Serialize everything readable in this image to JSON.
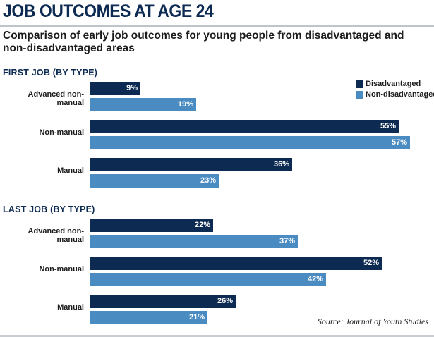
{
  "chart_data": {
    "type": "bar",
    "orientation": "horizontal",
    "title": "JOB OUTCOMES AT AGE 24",
    "subtitle": "Comparison of early job outcomes for young people from disadvantaged and non-disadvantaged areas",
    "legend": [
      {
        "name": "Disadvantaged",
        "color": "#0d2a52"
      },
      {
        "name": "Non-disadvantaged",
        "color": "#4a8bc2"
      }
    ],
    "xlim": [
      0,
      60
    ],
    "unit": "%",
    "sections": [
      {
        "heading": "FIRST JOB (BY TYPE)",
        "categories": [
          "Advanced non-manual",
          "Non-manual",
          "Manual"
        ],
        "series": [
          {
            "name": "Disadvantaged",
            "values": [
              9,
              55,
              36
            ]
          },
          {
            "name": "Non-disadvantaged",
            "values": [
              19,
              57,
              23
            ]
          }
        ]
      },
      {
        "heading": "LAST JOB (BY TYPE)",
        "categories": [
          "Advanced non-manual",
          "Non-manual",
          "Manual"
        ],
        "series": [
          {
            "name": "Disadvantaged",
            "values": [
              22,
              52,
              26
            ]
          },
          {
            "name": "Non-disadvantaged",
            "values": [
              37,
              42,
              21
            ]
          }
        ]
      }
    ],
    "source": "Source: Journal of Youth Studies"
  }
}
